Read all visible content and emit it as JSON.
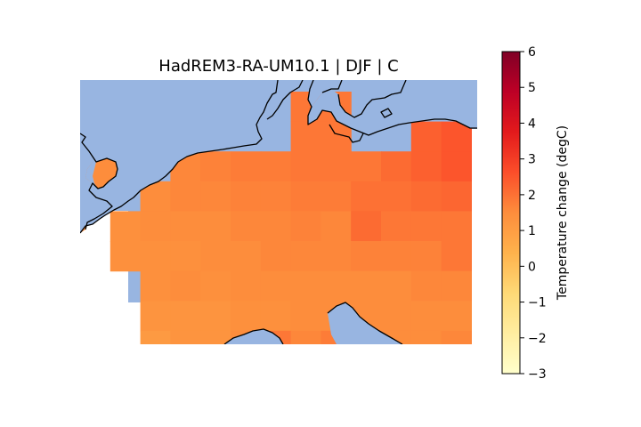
{
  "figure": {
    "title": "HadREM3-RA-UM10.1 | DJF | C"
  },
  "colors": {
    "sea": "#98b5e1",
    "background": "#ffffff"
  },
  "colorbar": {
    "label": "Temperature change (degC)",
    "min": -3,
    "max": 6,
    "ticks": [
      {
        "value": -3,
        "label": "−3"
      },
      {
        "value": -2,
        "label": "−2"
      },
      {
        "value": -1,
        "label": "−1"
      },
      {
        "value": 0,
        "label": "0"
      },
      {
        "value": 1,
        "label": "1"
      },
      {
        "value": 2,
        "label": "2"
      },
      {
        "value": 3,
        "label": "3"
      },
      {
        "value": 4,
        "label": "4"
      },
      {
        "value": 5,
        "label": "5"
      },
      {
        "value": 6,
        "label": "6"
      }
    ],
    "colormap": "YlOrRd",
    "stops": [
      {
        "v": 0.0,
        "c": "#ffffcc"
      },
      {
        "v": 0.125,
        "c": "#ffeda0"
      },
      {
        "v": 0.25,
        "c": "#fed976"
      },
      {
        "v": 0.375,
        "c": "#feb24c"
      },
      {
        "v": 0.5,
        "c": "#fd8d3c"
      },
      {
        "v": 0.625,
        "c": "#fc4e2a"
      },
      {
        "v": 0.75,
        "c": "#e31a1c"
      },
      {
        "v": 0.875,
        "c": "#bd0026"
      },
      {
        "v": 1.0,
        "c": "#800026"
      }
    ]
  },
  "grid_values": {
    "rows": [
      [
        null,
        null,
        null,
        null,
        null,
        null,
        null,
        1.9,
        1.9,
        null,
        null,
        null,
        null
      ],
      [
        null,
        null,
        null,
        null,
        null,
        null,
        null,
        1.9,
        1.9,
        null,
        null,
        2.3,
        2.5
      ],
      [
        null,
        null,
        null,
        1.6,
        1.7,
        1.8,
        1.8,
        1.9,
        1.9,
        1.9,
        2.1,
        2.3,
        2.5
      ],
      [
        null,
        null,
        1.5,
        1.6,
        1.6,
        1.7,
        1.7,
        1.8,
        1.8,
        2.0,
        2.0,
        2.1,
        2.2
      ],
      [
        null,
        1.4,
        1.5,
        1.5,
        1.5,
        1.6,
        1.6,
        1.7,
        1.6,
        2.1,
        1.9,
        1.9,
        1.9
      ],
      [
        null,
        1.4,
        1.4,
        1.4,
        1.5,
        1.5,
        1.6,
        1.6,
        1.6,
        1.7,
        1.7,
        1.7,
        1.9
      ],
      [
        null,
        null,
        1.4,
        1.5,
        1.4,
        1.5,
        1.5,
        1.5,
        1.5,
        1.5,
        1.5,
        1.6,
        1.6
      ],
      [
        null,
        null,
        1.3,
        1.3,
        1.3,
        1.4,
        1.4,
        1.5,
        1.5,
        1.5,
        1.5,
        1.5,
        1.5
      ],
      [
        null,
        null,
        1.1,
        1.3,
        1.3,
        1.5,
        1.9,
        1.6,
        1.8,
        1.5,
        1.5,
        1.5,
        1.6
      ],
      [
        null,
        null,
        null,
        1.5,
        1.5,
        1.5,
        1.5,
        1.5,
        1.5,
        1.5,
        1.5,
        1.5,
        1.6
      ]
    ]
  }
}
